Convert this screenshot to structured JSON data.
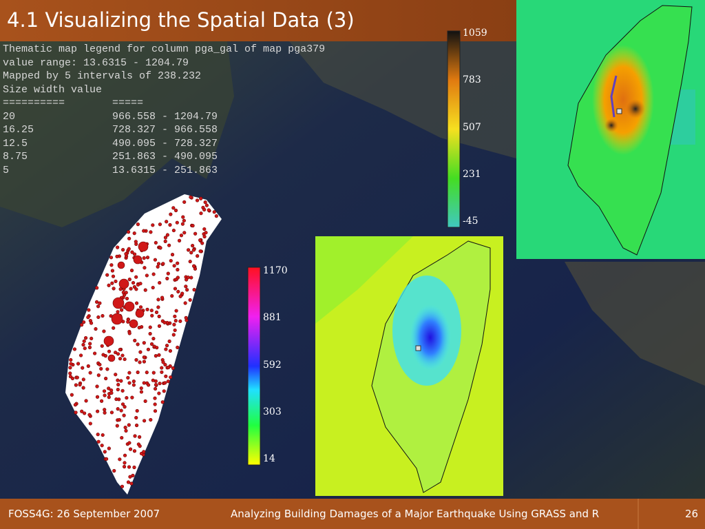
{
  "header": {
    "title": "4.1 Visualizing the Spatial Data (3)"
  },
  "legend_text": {
    "lines": [
      "Thematic map legend for column pga_gal of map pga379",
      "value range: 13.6315 - 1204.79",
      "Mapped by 5 intervals of 238.232",
      "Size width value"
    ],
    "separator": [
      "==========",
      "====="
    ],
    "rows": [
      [
        "20",
        "966.558 - 1204.79"
      ],
      [
        "16.25",
        "728.327 - 966.558"
      ],
      [
        "12.5",
        "490.095 - 728.327"
      ],
      [
        "8.75",
        "251.863 - 490.095"
      ],
      [
        "5",
        "13.6315 - 251.863"
      ]
    ]
  },
  "colorbar_top": {
    "labels": [
      "1059",
      "783",
      "507",
      "231",
      "-45"
    ]
  },
  "colorbar_middle": {
    "labels": [
      "1170",
      "881",
      "592",
      "303",
      "14"
    ]
  },
  "footer": {
    "left": "FOSS4G: 26 September 2007",
    "center": "Analyzing Building Damages of a Major Earthquake Using GRASS and R",
    "page": "26"
  }
}
